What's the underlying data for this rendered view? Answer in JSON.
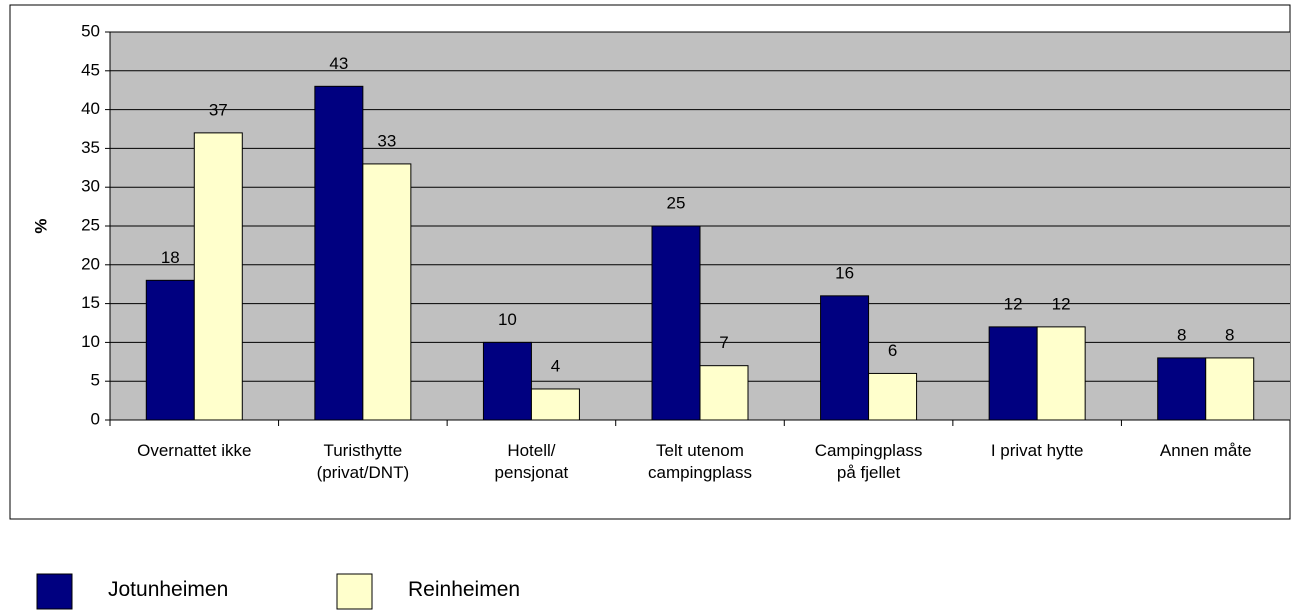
{
  "chart_data": {
    "type": "bar",
    "y_label": "%",
    "categories": [
      "Overnattet ikke",
      "Turisthytte\n(privat/DNT)",
      "Hotell/\npensjonat",
      "Telt utenom\ncampingplass",
      "Campingplass\npå fjellet",
      "I privat hytte",
      "Annen måte"
    ],
    "series": [
      {
        "name": "Jotunheimen",
        "color": "#000080",
        "values": [
          18,
          43,
          10,
          25,
          16,
          12,
          8
        ]
      },
      {
        "name": "Reinheimen",
        "color": "#ffffcc",
        "values": [
          37,
          33,
          4,
          7,
          6,
          12,
          8
        ]
      }
    ],
    "ylim": [
      0,
      50
    ],
    "yticks": [
      0,
      5,
      10,
      15,
      20,
      25,
      30,
      35,
      40,
      45,
      50
    ],
    "grid": true,
    "background": "#c0c0c0",
    "legend": "bottom"
  }
}
